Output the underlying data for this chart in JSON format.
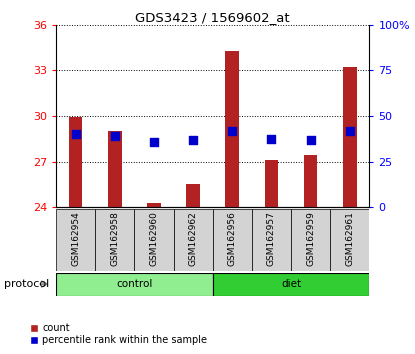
{
  "title": "GDS3423 / 1569602_at",
  "samples": [
    "GSM162954",
    "GSM162958",
    "GSM162960",
    "GSM162962",
    "GSM162956",
    "GSM162957",
    "GSM162959",
    "GSM162961"
  ],
  "groups": [
    "control",
    "control",
    "control",
    "control",
    "diet",
    "diet",
    "diet",
    "diet"
  ],
  "red_values": [
    29.9,
    29.0,
    24.3,
    25.5,
    34.3,
    27.1,
    27.4,
    33.2
  ],
  "blue_values": [
    28.8,
    28.7,
    28.3,
    28.4,
    29.0,
    28.5,
    28.4,
    29.0
  ],
  "ylim_left": [
    24,
    36
  ],
  "ylim_right": [
    0,
    100
  ],
  "yticks_left": [
    24,
    27,
    30,
    33,
    36
  ],
  "yticks_right": [
    0,
    25,
    50,
    75,
    100
  ],
  "ytick_labels_right": [
    "0",
    "25",
    "50",
    "75",
    "100%"
  ],
  "bar_color": "#b22222",
  "dot_color": "#0000cc",
  "control_color": "#90ee90",
  "diet_color": "#32cd32",
  "label_bg_color": "#d3d3d3",
  "legend_count": "count",
  "legend_pct": "percentile rank within the sample",
  "bar_width": 0.35,
  "dot_size": 28
}
